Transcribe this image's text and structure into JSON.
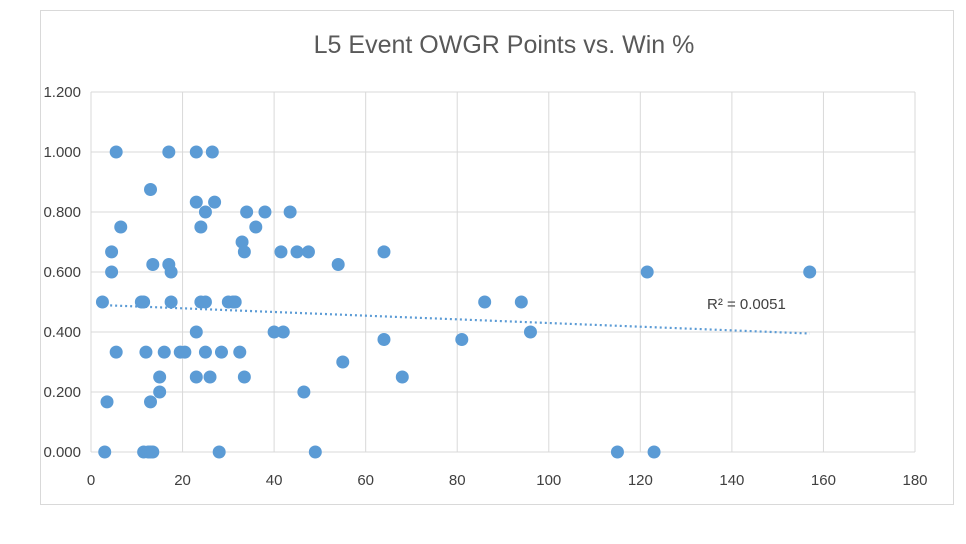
{
  "chart_data": {
    "type": "scatter",
    "title": "L5 Event OWGR Points vs. Win %",
    "xlabel": "",
    "ylabel": "",
    "xlim": [
      0,
      180
    ],
    "ylim": [
      0,
      1.2
    ],
    "x_ticks": [
      0,
      20,
      40,
      60,
      80,
      100,
      120,
      140,
      160,
      180
    ],
    "y_ticks": [
      "0.000",
      "0.200",
      "0.400",
      "0.600",
      "0.800",
      "1.000",
      "1.200"
    ],
    "y_tick_values": [
      0,
      0.2,
      0.4,
      0.6,
      0.8,
      1.0,
      1.2
    ],
    "grid": true,
    "legend": "none",
    "trendline": {
      "type": "linear",
      "x": [
        2,
        157
      ],
      "y": [
        0.49,
        0.395
      ],
      "r_squared_label": "R² = 0.0051"
    },
    "series": [
      {
        "color": "#5b9bd5",
        "points": [
          [
            3,
            0.0
          ],
          [
            3.5,
            0.167
          ],
          [
            2.5,
            0.5
          ],
          [
            4.5,
            0.6
          ],
          [
            4.5,
            0.667
          ],
          [
            5.5,
            0.333
          ],
          [
            5.5,
            1.0
          ],
          [
            6.5,
            0.75
          ],
          [
            11,
            0.5
          ],
          [
            11.5,
            0.5
          ],
          [
            12,
            0.333
          ],
          [
            11.5,
            0.0
          ],
          [
            12.5,
            0.0
          ],
          [
            13,
            0.0
          ],
          [
            13.5,
            0.0
          ],
          [
            13,
            0.875
          ],
          [
            13,
            0.167
          ],
          [
            13.5,
            0.625
          ],
          [
            15,
            0.25
          ],
          [
            15,
            0.2
          ],
          [
            16,
            0.333
          ],
          [
            17,
            1.0
          ],
          [
            17,
            0.625
          ],
          [
            17.5,
            0.6
          ],
          [
            17.5,
            0.5
          ],
          [
            19.5,
            0.333
          ],
          [
            20.5,
            0.333
          ],
          [
            23,
            1.0
          ],
          [
            23,
            0.833
          ],
          [
            23,
            0.4
          ],
          [
            23,
            0.25
          ],
          [
            24,
            0.75
          ],
          [
            24,
            0.5
          ],
          [
            25,
            0.8
          ],
          [
            25,
            0.5
          ],
          [
            25,
            0.333
          ],
          [
            26,
            0.25
          ],
          [
            26.5,
            1.0
          ],
          [
            27,
            0.833
          ],
          [
            28,
            0.0
          ],
          [
            28.5,
            0.333
          ],
          [
            30,
            0.5
          ],
          [
            31,
            0.5
          ],
          [
            31.5,
            0.5
          ],
          [
            32.5,
            0.333
          ],
          [
            33,
            0.7
          ],
          [
            33.5,
            0.667
          ],
          [
            33.5,
            0.25
          ],
          [
            34,
            0.8
          ],
          [
            36,
            0.75
          ],
          [
            38,
            0.8
          ],
          [
            40,
            0.4
          ],
          [
            41.5,
            0.667
          ],
          [
            42,
            0.4
          ],
          [
            43.5,
            0.8
          ],
          [
            45,
            0.667
          ],
          [
            46.5,
            0.2
          ],
          [
            47.5,
            0.667
          ],
          [
            49,
            0.0
          ],
          [
            54,
            0.625
          ],
          [
            55,
            0.3
          ],
          [
            64,
            0.667
          ],
          [
            64,
            0.375
          ],
          [
            68,
            0.25
          ],
          [
            81,
            0.375
          ],
          [
            86,
            0.5
          ],
          [
            94,
            0.5
          ],
          [
            96,
            0.4
          ],
          [
            115,
            0.0
          ],
          [
            121.5,
            0.6
          ],
          [
            123,
            0.0
          ],
          [
            157,
            0.6
          ]
        ]
      }
    ]
  }
}
